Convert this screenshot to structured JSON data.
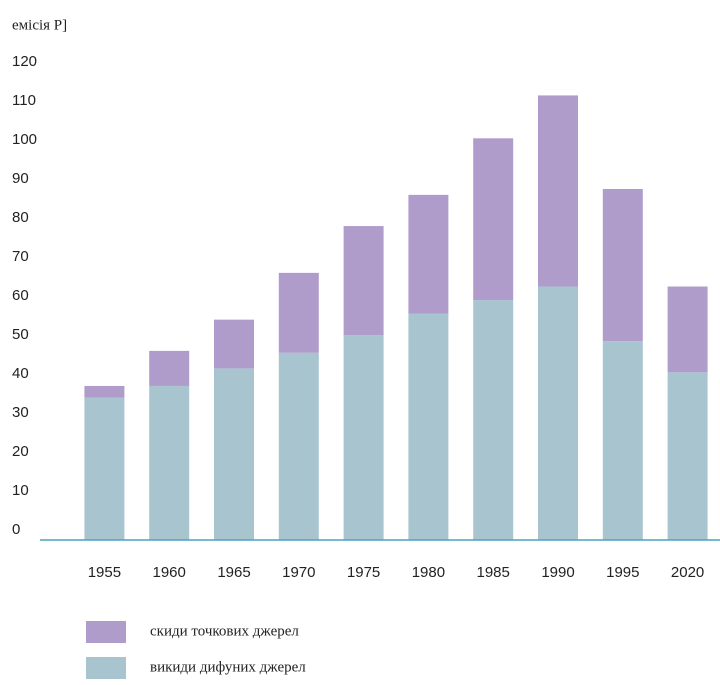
{
  "chart_data": {
    "type": "stacked_bar",
    "y_label": "емісія Р]",
    "categories": [
      "1955",
      "1960",
      "1965",
      "1970",
      "1975",
      "1980",
      "1985",
      "1990",
      "1995",
      "2020"
    ],
    "series": [
      {
        "name": "викиди дифуних джерел",
        "color": "#a8c4cf",
        "values": [
          36.5,
          39.5,
          44,
          48,
          52.5,
          58,
          61.5,
          65,
          51,
          43
        ]
      },
      {
        "name": "скиди точкових джерел",
        "color": "#b09ccb",
        "values": [
          3,
          9,
          12.5,
          20.5,
          28,
          30.5,
          41.5,
          49,
          39,
          22
        ]
      }
    ],
    "ylim": [
      0,
      120
    ],
    "yticks": [
      0,
      10,
      20,
      30,
      40,
      50,
      60,
      70,
      80,
      90,
      100,
      110,
      120
    ],
    "grid": false,
    "legend": "bottom-left"
  }
}
